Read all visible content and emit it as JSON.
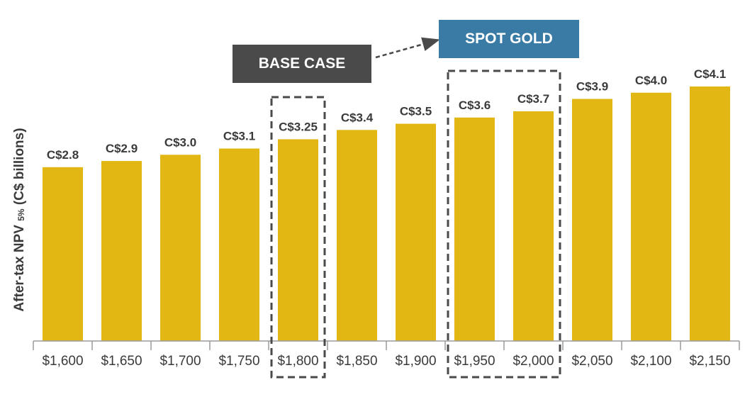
{
  "chart_data": {
    "type": "bar",
    "ylabel": "After-tax NPV",
    "ylabel_subscript": "5%",
    "ylabel_suffix": "(C$ billions)",
    "categories": [
      "$1,600",
      "$1,650",
      "$1,700",
      "$1,750",
      "$1,800",
      "$1,850",
      "$1,900",
      "$1,950",
      "$2,000",
      "$2,050",
      "$2,100",
      "$2,150"
    ],
    "values": [
      2.8,
      2.9,
      3.0,
      3.1,
      3.25,
      3.4,
      3.5,
      3.6,
      3.7,
      3.9,
      4.0,
      4.1
    ],
    "data_labels": [
      "C$2.8",
      "C$2.9",
      "C$3.0",
      "C$3.1",
      "C$3.25",
      "C$3.4",
      "C$3.5",
      "C$3.6",
      "C$3.7",
      "C$3.9",
      "C$4.0",
      "C$4.1"
    ],
    "ylim": [
      0,
      4.1
    ],
    "grid": false,
    "bar_color": "#e2b714",
    "annotations": {
      "base_case": {
        "label": "BASE CASE",
        "categories": [
          "$1,800"
        ],
        "color": "#4a4a4a"
      },
      "spot_gold": {
        "label": "SPOT GOLD",
        "categories": [
          "$1,950",
          "$2,000"
        ],
        "color": "#3a7ba6"
      }
    }
  }
}
